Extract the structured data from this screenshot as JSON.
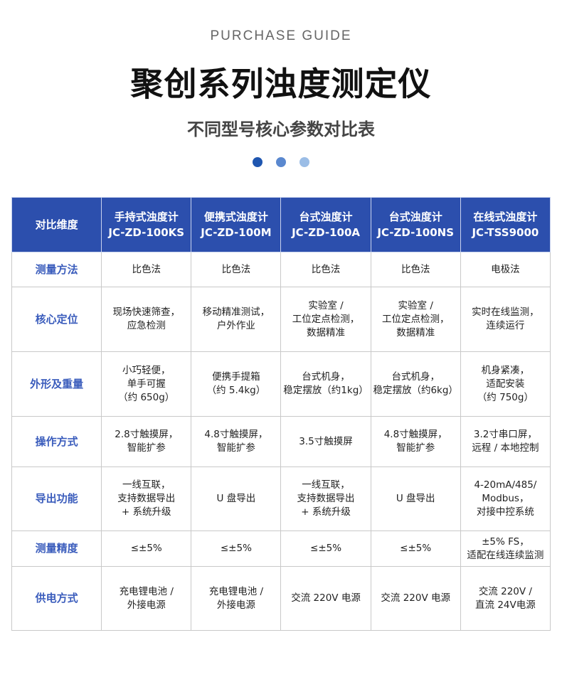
{
  "header": {
    "eyebrow": "PURCHASE GUIDE",
    "title": "聚创系列浊度测定仪",
    "subtitle": "不同型号核心参数对比表",
    "dot_colors": [
      "#1f56b0",
      "#5a88cf",
      "#9bbde6"
    ]
  },
  "colors": {
    "header_bg": "#2c4fad",
    "label_text": "#3a5cbc"
  },
  "table": {
    "corner": "对比维度",
    "columns": [
      {
        "name": "手持式浊度计",
        "model": "JC-ZD-100KS"
      },
      {
        "name": "便携式浊度计",
        "model": "JC-ZD-100M"
      },
      {
        "name": "台式浊度计",
        "model": "JC-ZD-100A"
      },
      {
        "name": "台式浊度计",
        "model": "JC-ZD-100NS"
      },
      {
        "name": "在线式浊度计",
        "model": "JC-TSS9000"
      }
    ],
    "rows": [
      {
        "label": "测量方法",
        "cells": [
          "比色法",
          "比色法",
          "比色法",
          "比色法",
          "电极法"
        ]
      },
      {
        "label": "核心定位",
        "cells": [
          "现场快速筛查，\n应急检测",
          "移动精准测试，\n户外作业",
          "实验室 /\n工位定点检测，\n数据精准",
          "实验室 /\n工位定点检测，\n数据精准",
          "实时在线监测，\n连续运行"
        ]
      },
      {
        "label": "外形及重量",
        "cells": [
          "小巧轻便，\n单手可握\n（约 650g）",
          "便携手提箱\n（约 5.4kg）",
          "台式机身，\n稳定摆放（约1kg）",
          "台式机身，\n稳定摆放（约6kg）",
          "机身紧凑，\n适配安装\n（约 750g）"
        ]
      },
      {
        "label": "操作方式",
        "cells": [
          "2.8寸触摸屏，\n智能扩参",
          "4.8寸触摸屏，\n智能扩参",
          "3.5寸触摸屏",
          "4.8寸触摸屏，\n智能扩参",
          "3.2寸串口屏，\n远程 / 本地控制"
        ]
      },
      {
        "label": "导出功能",
        "cells": [
          "一线互联，\n支持数据导出\n+ 系统升级",
          "U 盘导出",
          "一线互联，\n支持数据导出\n+ 系统升级",
          "U 盘导出",
          "4-20mA/485/\nModbus，\n对接中控系统"
        ]
      },
      {
        "label": "测量精度",
        "cells": [
          "≤±5%",
          "≤±5%",
          "≤±5%",
          "≤±5%",
          "±5% FS，\n适配在线连续监测"
        ]
      },
      {
        "label": "供电方式",
        "cells": [
          "充电锂电池 /\n外接电源",
          "充电锂电池 /\n外接电源",
          "交流 220V 电源",
          "交流 220V 电源",
          "交流 220V /\n直流 24V电源"
        ]
      }
    ]
  }
}
